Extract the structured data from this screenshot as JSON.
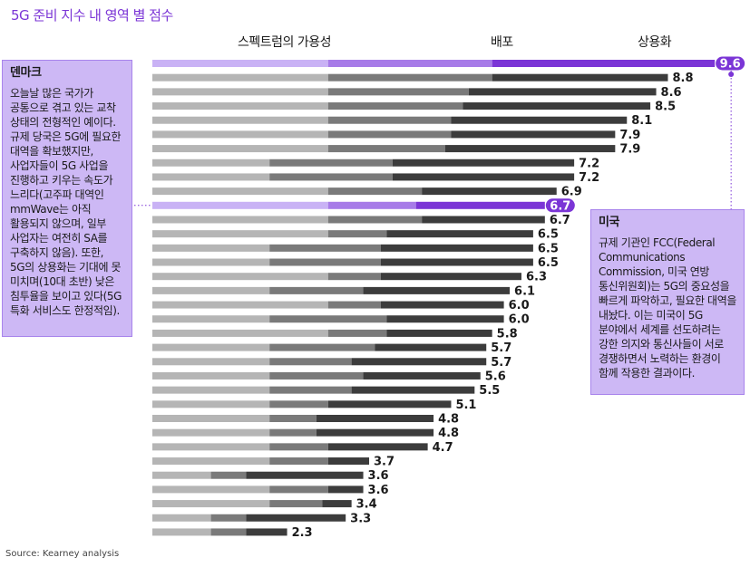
{
  "title": "5G 준비 지수 내 영역 별 점수",
  "columns": {
    "c1": "스펙트럼의 가용성",
    "c2": "배포",
    "c3": "상용화"
  },
  "source": "Source: Kearney analysis",
  "notes": {
    "denmark": {
      "title": "덴마크",
      "body": "오늘날 많은 국가가\n공통으로 겪고 있는 교착\n상태의 전형적인 예이다.\n규제 당국은 5G에 필요한\n대역을 확보했지만,\n사업자들이 5G 사업을\n진행하고 키우는 속도가\n느리다(고주파 대역인\nmmWave는 아직\n활용되지 않으며, 일부\n사업자는 여전히 SA를\n구축하지 않음). 또한,\n5G의 상용화는 기대에 못\n미치며(10대 초반) 낮은\n침투율을 보이고 있다(5G\n특화 서비스도 한정적임)."
    },
    "usa": {
      "title": "미국",
      "body": "규제 기관인 FCC(Federal\nCommunications\nCommission, 미국 연방\n통신위원회)는 5G의 중요성을\n빠르게 파악하고, 필요한 대역을\n내놨다. 이는 미국이 5G\n분야에서 세계를 선도하려는\n강한 의지와 통신사들이 서로\n경쟁하면서 노력하는 환경이\n함께 작용한 결과이다."
    }
  },
  "colors": {
    "spectrum": "#b5b5b5",
    "deployment": "#7a7a7a",
    "commercialization": "#3c3c3c",
    "hl_spectrum": "#c9b2f5",
    "hl_deployment": "#a77be8",
    "hl_commercialization": "#7b35d6"
  },
  "chart_data": {
    "type": "bar",
    "stacked": true,
    "orientation": "horizontal",
    "title": "5G 준비 지수 내 영역 별 점수",
    "series_names": [
      "스펙트럼의 가용성",
      "배포",
      "상용화"
    ],
    "highlighted": [
      0,
      10
    ],
    "rows": [
      {
        "total": 9.6,
        "parts": [
          3.0,
          2.8,
          3.8
        ]
      },
      {
        "total": 8.8,
        "parts": [
          3.0,
          2.8,
          3.0
        ]
      },
      {
        "total": 8.6,
        "parts": [
          3.0,
          2.4,
          3.2
        ]
      },
      {
        "total": 8.5,
        "parts": [
          3.0,
          2.3,
          3.2
        ]
      },
      {
        "total": 8.1,
        "parts": [
          3.0,
          2.1,
          3.0
        ]
      },
      {
        "total": 7.9,
        "parts": [
          3.0,
          2.1,
          2.8
        ]
      },
      {
        "total": 7.9,
        "parts": [
          3.0,
          2.0,
          2.9
        ]
      },
      {
        "total": 7.2,
        "parts": [
          2.0,
          2.1,
          3.1
        ]
      },
      {
        "total": 7.2,
        "parts": [
          2.0,
          2.1,
          3.1
        ]
      },
      {
        "total": 6.9,
        "parts": [
          3.0,
          1.6,
          2.3
        ]
      },
      {
        "total": 6.7,
        "parts": [
          3.0,
          1.5,
          2.2
        ]
      },
      {
        "total": 6.7,
        "parts": [
          3.0,
          1.6,
          2.1
        ]
      },
      {
        "total": 6.5,
        "parts": [
          3.0,
          1.0,
          2.5
        ]
      },
      {
        "total": 6.5,
        "parts": [
          2.0,
          1.9,
          2.6
        ]
      },
      {
        "total": 6.5,
        "parts": [
          2.0,
          1.9,
          2.6
        ]
      },
      {
        "total": 6.3,
        "parts": [
          3.0,
          0.9,
          2.4
        ]
      },
      {
        "total": 6.1,
        "parts": [
          2.0,
          1.6,
          2.5
        ]
      },
      {
        "total": 6.0,
        "parts": [
          3.0,
          0.9,
          2.1
        ]
      },
      {
        "total": 6.0,
        "parts": [
          2.0,
          2.0,
          2.0
        ]
      },
      {
        "total": 5.8,
        "parts": [
          3.0,
          1.0,
          1.8
        ]
      },
      {
        "total": 5.7,
        "parts": [
          2.0,
          1.8,
          1.9
        ]
      },
      {
        "total": 5.7,
        "parts": [
          2.0,
          1.4,
          2.3
        ]
      },
      {
        "total": 5.6,
        "parts": [
          2.0,
          1.6,
          2.0
        ]
      },
      {
        "total": 5.5,
        "parts": [
          2.0,
          1.4,
          2.1
        ]
      },
      {
        "total": 5.1,
        "parts": [
          2.0,
          1.0,
          2.1
        ]
      },
      {
        "total": 4.8,
        "parts": [
          2.0,
          0.8,
          2.0
        ]
      },
      {
        "total": 4.8,
        "parts": [
          2.0,
          0.8,
          2.0
        ]
      },
      {
        "total": 4.7,
        "parts": [
          2.0,
          1.0,
          1.7
        ]
      },
      {
        "total": 3.7,
        "parts": [
          2.0,
          1.0,
          0.7
        ]
      },
      {
        "total": 3.6,
        "parts": [
          1.0,
          0.6,
          2.0
        ]
      },
      {
        "total": 3.6,
        "parts": [
          2.0,
          1.0,
          0.6
        ]
      },
      {
        "total": 3.4,
        "parts": [
          2.0,
          0.9,
          0.5
        ]
      },
      {
        "total": 3.3,
        "parts": [
          1.0,
          0.6,
          1.7
        ]
      },
      {
        "total": 2.3,
        "parts": [
          1.0,
          0.6,
          0.7
        ]
      }
    ]
  }
}
